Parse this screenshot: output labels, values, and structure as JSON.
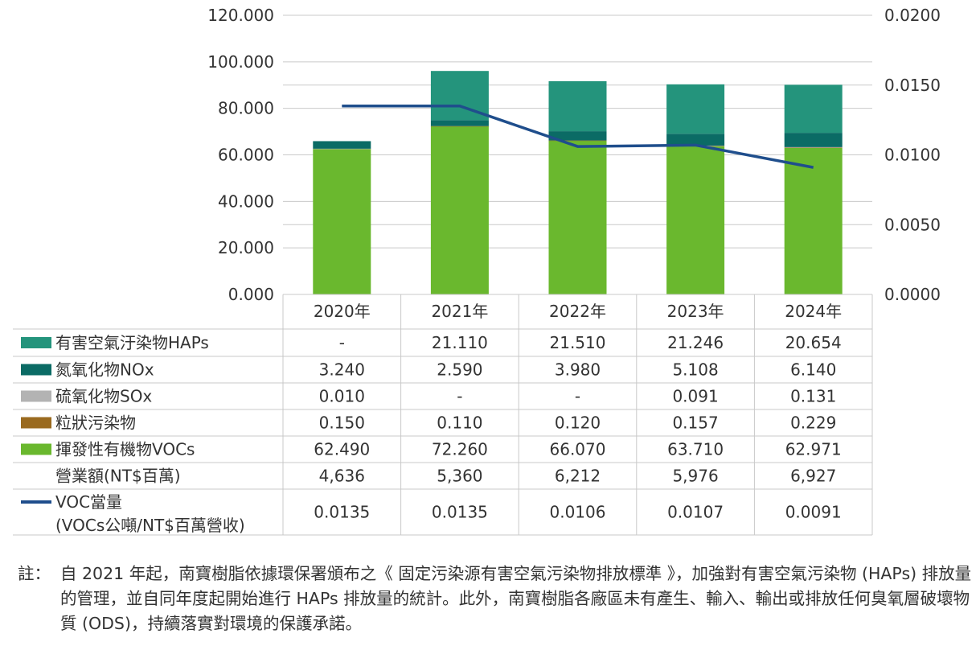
{
  "chart_data": {
    "type": "bar",
    "stacked": true,
    "categories": [
      "2020年",
      "2021年",
      "2022年",
      "2023年",
      "2024年"
    ],
    "ylim": [
      0,
      120
    ],
    "y_ticks": [
      "0.000",
      "20.000",
      "40.000",
      "60.000",
      "80.000",
      "100.000",
      "120.000"
    ],
    "y2lim": [
      0,
      0.02
    ],
    "y2_ticks": [
      "0.0000",
      "0.0050",
      "0.0100",
      "0.0150",
      "0.0200"
    ],
    "grid": true,
    "legend": "table-left",
    "series": [
      {
        "name": "有害空氣汙染物HAPs",
        "color": "#24947c",
        "values": [
          0,
          21.11,
          21.51,
          21.246,
          20.654
        ],
        "labels": [
          "-",
          "21.110",
          "21.510",
          "21.246",
          "20.654"
        ]
      },
      {
        "name": "氮氧化物NOx",
        "color": "#0b6b65",
        "values": [
          3.24,
          2.59,
          3.98,
          5.108,
          6.14
        ],
        "labels": [
          "3.240",
          "2.590",
          "3.980",
          "5.108",
          "6.140"
        ]
      },
      {
        "name": "硫氧化物SOx",
        "color": "#b3b3b3",
        "values": [
          0.01,
          0,
          0,
          0.091,
          0.131
        ],
        "labels": [
          "0.010",
          "-",
          "-",
          "0.091",
          "0.131"
        ]
      },
      {
        "name": "粒狀污染物",
        "color": "#9a6a1f",
        "values": [
          0.15,
          0.11,
          0.12,
          0.157,
          0.229
        ],
        "labels": [
          "0.150",
          "0.110",
          "0.120",
          "0.157",
          "0.229"
        ]
      },
      {
        "name": "揮發性有機物VOCs",
        "color": "#6ab82e",
        "values": [
          62.49,
          72.26,
          66.07,
          63.71,
          62.971
        ],
        "labels": [
          "62.490",
          "72.260",
          "66.070",
          "63.710",
          "62.971"
        ]
      }
    ],
    "revenue_row": {
      "name": "營業額(NT$百萬)",
      "labels": [
        "4,636",
        "5,360",
        "6,212",
        "5,976",
        "6,927"
      ]
    },
    "line_series": {
      "name_line1": "VOC當量",
      "name_line2": "(VOCs公噸/NT$百萬營收)",
      "color": "#1f4e8c",
      "axis": "right",
      "values": [
        0.0135,
        0.0135,
        0.0106,
        0.0107,
        0.0091
      ],
      "labels": [
        "0.0135",
        "0.0135",
        "0.0106",
        "0.0107",
        "0.0091"
      ]
    }
  },
  "note": {
    "label": "註：",
    "text": "自 2021 年起，南寶樹脂依據環保署頒布之《 固定污染源有害空氣污染物排放標準 》，加強對有害空氣污染物 (HAPs) 排放量的管理，並自同年度起開始進行 HAPs 排放量的統計。此外，南寶樹脂各廠區未有產生、輸入、輸出或排放任何臭氧層破壞物質 (ODS)，持續落實對環境的保護承諾。"
  }
}
